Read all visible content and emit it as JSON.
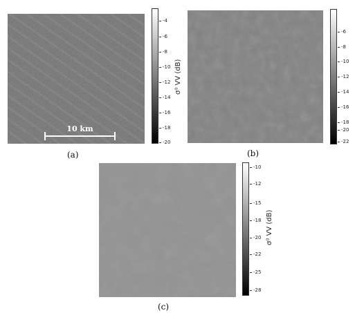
{
  "panels": {
    "a": {
      "caption": "(a)",
      "colorbar_label": "σ⁰ VV (dB)",
      "ticks": [
        "-4",
        "-6",
        "-8",
        "-10",
        "-12",
        "-14",
        "-16",
        "-18",
        "-20"
      ],
      "scale_bar": "10 km",
      "tone": "#6f6f6f",
      "pattern": "diagonal-streaks"
    },
    "b": {
      "caption": "(b)",
      "colorbar_label": "",
      "ticks": [
        "-6",
        "-8",
        "-10",
        "-12",
        "-14",
        "-16",
        "-18",
        "-20",
        "-22"
      ],
      "tone": "#7a7a7a",
      "pattern": "mottled"
    },
    "c": {
      "caption": "(c)",
      "colorbar_label": "σ⁰ VV (dB)",
      "ticks": [
        "-10",
        "-12",
        "-15",
        "-18",
        "-20",
        "-22",
        "-25",
        "-28"
      ],
      "tone": "#8a8a8a",
      "pattern": "fine-speckle"
    }
  }
}
